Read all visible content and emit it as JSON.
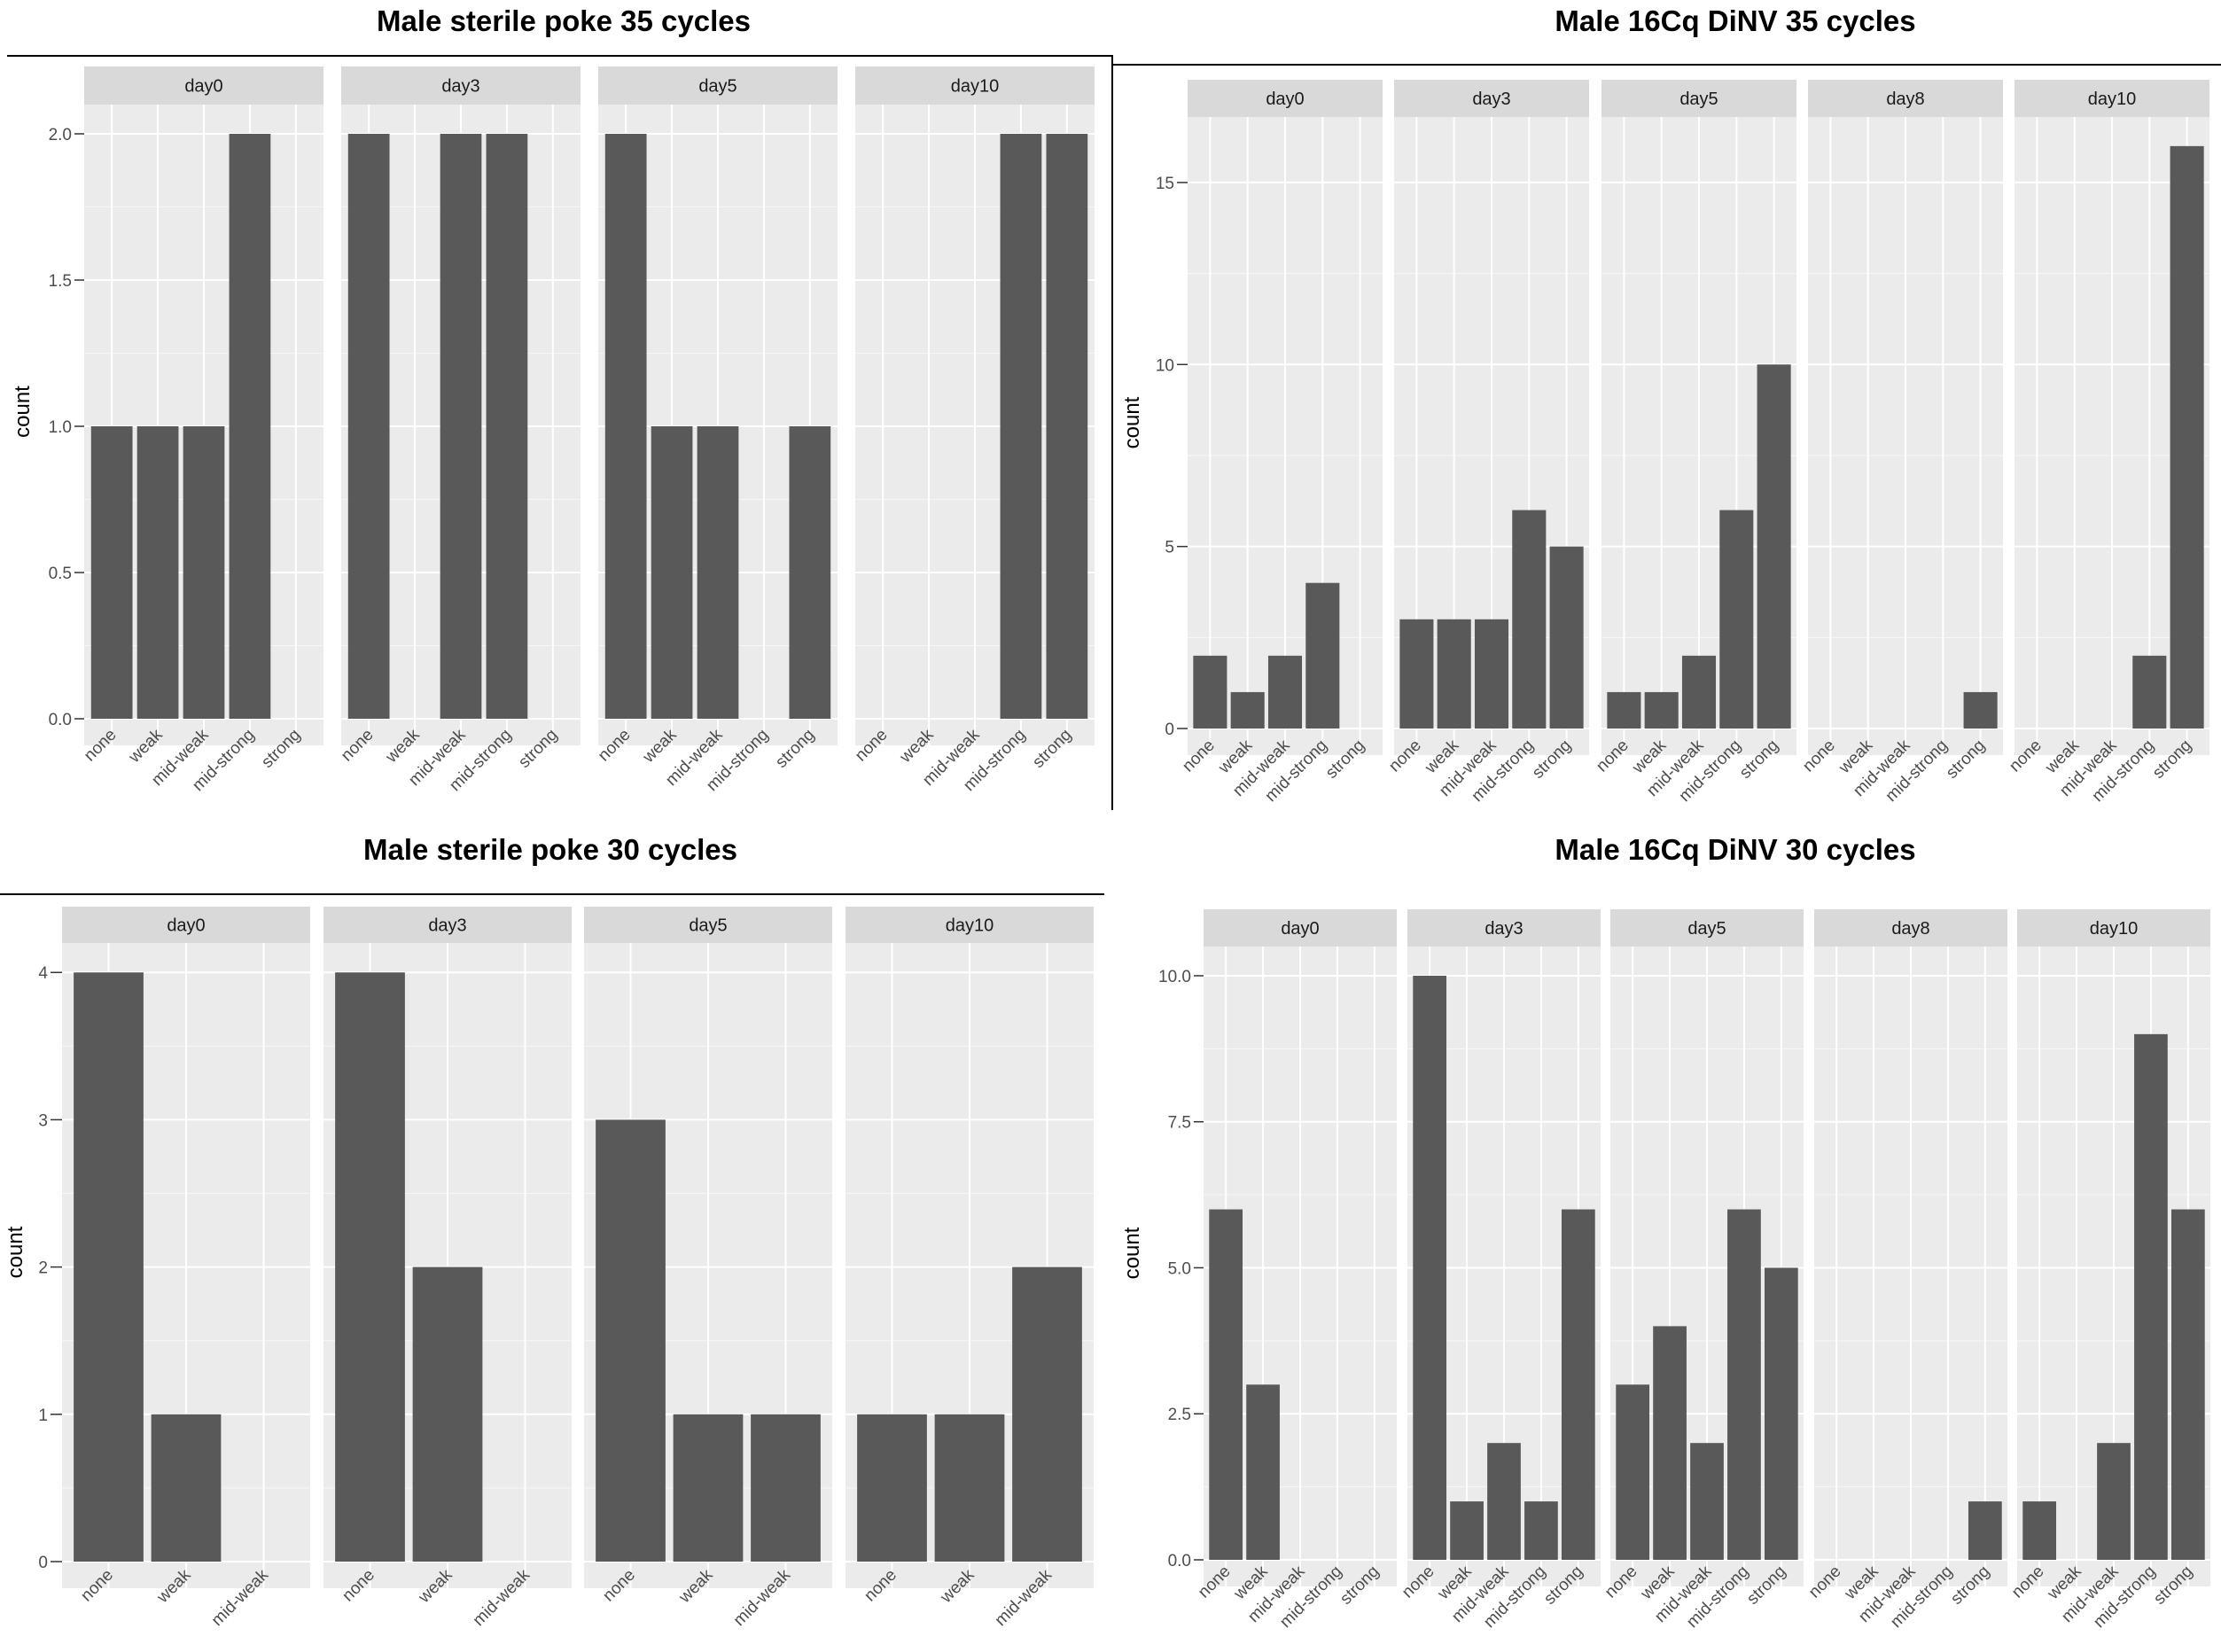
{
  "colors": {
    "panel_bg": "#ebebeb",
    "strip_bg": "#d9d9d9",
    "grid_major": "#ffffff",
    "bar_fill": "#595959",
    "axis_text": "#4d4d4d",
    "title_text": "#000000"
  },
  "chart_data": [
    {
      "type": "bar",
      "title": "Male sterile poke 35 cycles",
      "ylabel": "count",
      "xlabel": "",
      "ylim": [
        0,
        2.1
      ],
      "yticks": [
        0,
        0.5,
        1,
        1.5,
        2
      ],
      "ytick_labels": [
        "0.0",
        "0.5",
        "1.0",
        "1.5",
        "2.0"
      ],
      "categories": [
        "none",
        "weak",
        "mid-weak",
        "mid-strong",
        "strong"
      ],
      "facets": [
        {
          "name": "day0",
          "values": [
            1,
            1,
            1,
            2,
            0
          ]
        },
        {
          "name": "day3",
          "values": [
            2,
            0,
            2,
            2,
            0
          ]
        },
        {
          "name": "day5",
          "values": [
            2,
            1,
            1,
            0,
            1
          ]
        },
        {
          "name": "day10",
          "values": [
            0,
            0,
            0,
            2,
            2
          ]
        }
      ]
    },
    {
      "type": "bar",
      "title": "Male 16Cq DiNV  35 cycles",
      "ylabel": "count",
      "xlabel": "",
      "ylim": [
        0,
        16.8
      ],
      "yticks": [
        0,
        5,
        10,
        15
      ],
      "ytick_labels": [
        "0",
        "5",
        "10",
        "15"
      ],
      "categories": [
        "none",
        "weak",
        "mid-weak",
        "mid-strong",
        "strong"
      ],
      "facets": [
        {
          "name": "day0",
          "values": [
            2,
            1,
            2,
            4,
            0
          ]
        },
        {
          "name": "day3",
          "values": [
            3,
            3,
            3,
            6,
            5
          ]
        },
        {
          "name": "day5",
          "values": [
            1,
            1,
            2,
            6,
            10
          ]
        },
        {
          "name": "day8",
          "values": [
            0,
            0,
            0,
            0,
            1
          ]
        },
        {
          "name": "day10",
          "values": [
            0,
            0,
            0,
            2,
            16
          ]
        }
      ]
    },
    {
      "type": "bar",
      "title": "Male sterile poke 30 cycles",
      "ylabel": "count",
      "xlabel": "",
      "ylim": [
        0,
        4.2
      ],
      "yticks": [
        0,
        1,
        2,
        3,
        4
      ],
      "ytick_labels": [
        "0",
        "1",
        "2",
        "3",
        "4"
      ],
      "categories": [
        "none",
        "weak",
        "mid-weak"
      ],
      "facets": [
        {
          "name": "day0",
          "values": [
            4,
            1,
            0
          ]
        },
        {
          "name": "day3",
          "values": [
            4,
            2,
            0
          ]
        },
        {
          "name": "day5",
          "values": [
            3,
            1,
            1
          ]
        },
        {
          "name": "day10",
          "values": [
            1,
            1,
            2
          ]
        }
      ]
    },
    {
      "type": "bar",
      "title": "Male 16Cq DiNV  30 cycles",
      "ylabel": "count",
      "xlabel": "",
      "ylim": [
        0,
        10.5
      ],
      "yticks": [
        0,
        2.5,
        5,
        7.5,
        10
      ],
      "ytick_labels": [
        "0.0",
        "2.5",
        "5.0",
        "7.5",
        "10.0"
      ],
      "categories": [
        "none",
        "weak",
        "mid-weak",
        "mid-strong",
        "strong"
      ],
      "facets": [
        {
          "name": "day0",
          "values": [
            6,
            3,
            0,
            0,
            0
          ]
        },
        {
          "name": "day3",
          "values": [
            10,
            1,
            2,
            1,
            6
          ]
        },
        {
          "name": "day5",
          "values": [
            3,
            4,
            2,
            6,
            5
          ]
        },
        {
          "name": "day8",
          "values": [
            0,
            0,
            0,
            0,
            1
          ]
        },
        {
          "name": "day10",
          "values": [
            1,
            0,
            2,
            9,
            6
          ]
        }
      ]
    }
  ]
}
